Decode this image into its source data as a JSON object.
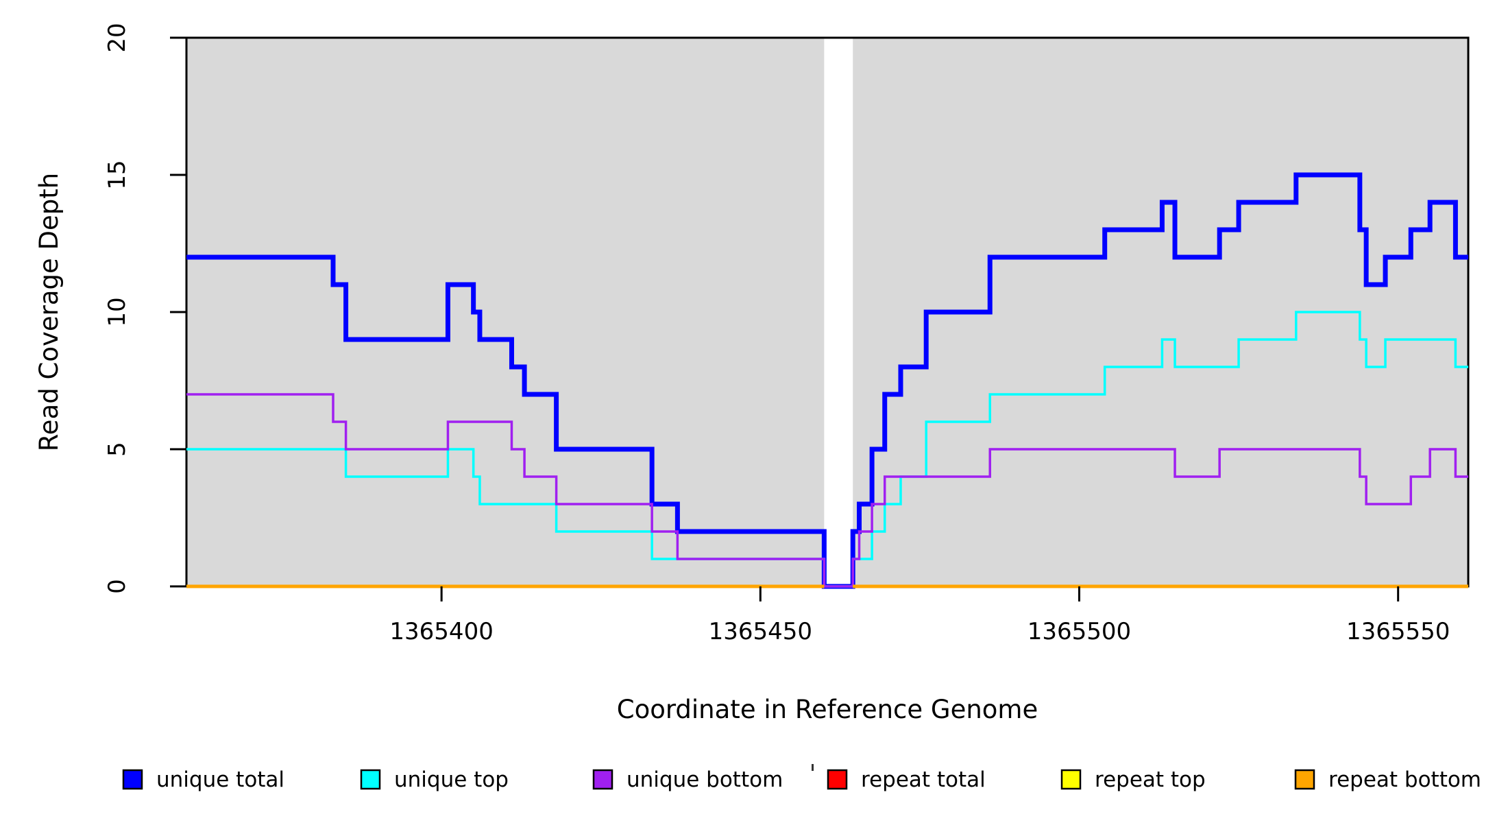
{
  "labels": {
    "y_title": "Read Coverage Depth",
    "x_title": "Coordinate in Reference Genome"
  },
  "chart_data": {
    "type": "step-line-coverage",
    "title": "",
    "xlabel": "Coordinate in Reference Genome",
    "ylabel": "Read Coverage Depth",
    "x_domain": [
      1365360,
      1365561
    ],
    "y_domain": [
      0,
      20
    ],
    "x_ticks": [
      {
        "value": 1365400,
        "label": "1365400"
      },
      {
        "value": 1365450,
        "label": "1365450"
      },
      {
        "value": 1365500,
        "label": "1365500"
      },
      {
        "value": 1365550,
        "label": "1365550"
      }
    ],
    "y_ticks": [
      {
        "value": 0,
        "label": "0"
      },
      {
        "value": 5,
        "label": "5"
      },
      {
        "value": 10,
        "label": "10"
      },
      {
        "value": 15,
        "label": "15"
      },
      {
        "value": 20,
        "label": "20"
      }
    ],
    "grid": false,
    "plot_bg_color": "#d9d9d9",
    "gap": {
      "from": 1365460,
      "to": 1365464.5,
      "color": "#ffffff",
      "note": "zero-coverage window, background white"
    },
    "series": [
      {
        "name": "unique total",
        "color": "#0000ff",
        "line_width": 7,
        "initial_value": 12,
        "changes": [
          [
            1365383,
            11
          ],
          [
            1365385,
            9
          ],
          [
            1365401,
            11
          ],
          [
            1365405,
            10
          ],
          [
            1365406,
            9
          ],
          [
            1365411,
            8
          ],
          [
            1365413,
            7
          ],
          [
            1365418,
            5
          ],
          [
            1365433,
            3
          ],
          [
            1365437,
            2
          ],
          [
            1365460,
            0
          ],
          [
            1365464.5,
            2
          ],
          [
            1365465.5,
            3
          ],
          [
            1365467.5,
            5
          ],
          [
            1365469.5,
            7
          ],
          [
            1365472,
            8
          ],
          [
            1365476,
            10
          ],
          [
            1365486,
            12
          ],
          [
            1365504,
            13
          ],
          [
            1365513,
            14
          ],
          [
            1365515,
            12
          ],
          [
            1365522,
            13
          ],
          [
            1365525,
            14
          ],
          [
            1365534,
            15
          ],
          [
            1365544,
            13
          ],
          [
            1365545,
            11
          ],
          [
            1365548,
            12
          ],
          [
            1365552,
            13
          ],
          [
            1365555,
            14
          ],
          [
            1365559,
            12
          ]
        ]
      },
      {
        "name": "unique top",
        "color": "#00ffff",
        "line_width": 3.5,
        "initial_value": 5,
        "changes": [
          [
            1365385,
            4
          ],
          [
            1365401,
            5
          ],
          [
            1365405,
            4
          ],
          [
            1365406,
            3
          ],
          [
            1365418,
            2
          ],
          [
            1365433,
            1
          ],
          [
            1365460,
            0
          ],
          [
            1365464.5,
            1
          ],
          [
            1365467.5,
            2
          ],
          [
            1365469.5,
            3
          ],
          [
            1365472,
            4
          ],
          [
            1365476,
            6
          ],
          [
            1365486,
            7
          ],
          [
            1365504,
            8
          ],
          [
            1365513,
            9
          ],
          [
            1365515,
            8
          ],
          [
            1365525,
            9
          ],
          [
            1365534,
            10
          ],
          [
            1365544,
            9
          ],
          [
            1365545,
            8
          ],
          [
            1365548,
            9
          ],
          [
            1365559,
            8
          ]
        ]
      },
      {
        "name": "unique bottom",
        "color": "#a020f0",
        "line_width": 3.5,
        "initial_value": 7,
        "changes": [
          [
            1365383,
            6
          ],
          [
            1365385,
            5
          ],
          [
            1365401,
            6
          ],
          [
            1365411,
            5
          ],
          [
            1365413,
            4
          ],
          [
            1365418,
            3
          ],
          [
            1365433,
            2
          ],
          [
            1365437,
            1
          ],
          [
            1365460,
            0
          ],
          [
            1365464.5,
            1
          ],
          [
            1365465.5,
            2
          ],
          [
            1365467.5,
            3
          ],
          [
            1365469.5,
            4
          ],
          [
            1365486,
            5
          ],
          [
            1365515,
            4
          ],
          [
            1365522,
            5
          ],
          [
            1365544,
            4
          ],
          [
            1365545,
            3
          ],
          [
            1365552,
            4
          ],
          [
            1365555,
            5
          ],
          [
            1365559,
            4
          ]
        ]
      },
      {
        "name": "repeat total",
        "color": "#ff0000",
        "line_width": 3,
        "initial_value": 0,
        "changes": [],
        "break_at_gap": true
      },
      {
        "name": "repeat top",
        "color": "#ffff00",
        "line_width": 3,
        "initial_value": 0,
        "changes": [],
        "break_at_gap": true
      },
      {
        "name": "repeat bottom",
        "color": "#ffa500",
        "line_width": 5,
        "initial_value": 0,
        "changes": [],
        "break_at_gap": true
      }
    ]
  },
  "legend": {
    "items": [
      {
        "label": "unique total",
        "color": "#0000ff"
      },
      {
        "label": "unique top",
        "color": "#00ffff"
      },
      {
        "label": "unique bottom",
        "color": "#a020f0"
      },
      {
        "label": "repeat total",
        "color": "#ff0000"
      },
      {
        "label": "repeat top",
        "color": "#ffff00"
      },
      {
        "label": "repeat bottom",
        "color": "#ffa500"
      }
    ]
  }
}
